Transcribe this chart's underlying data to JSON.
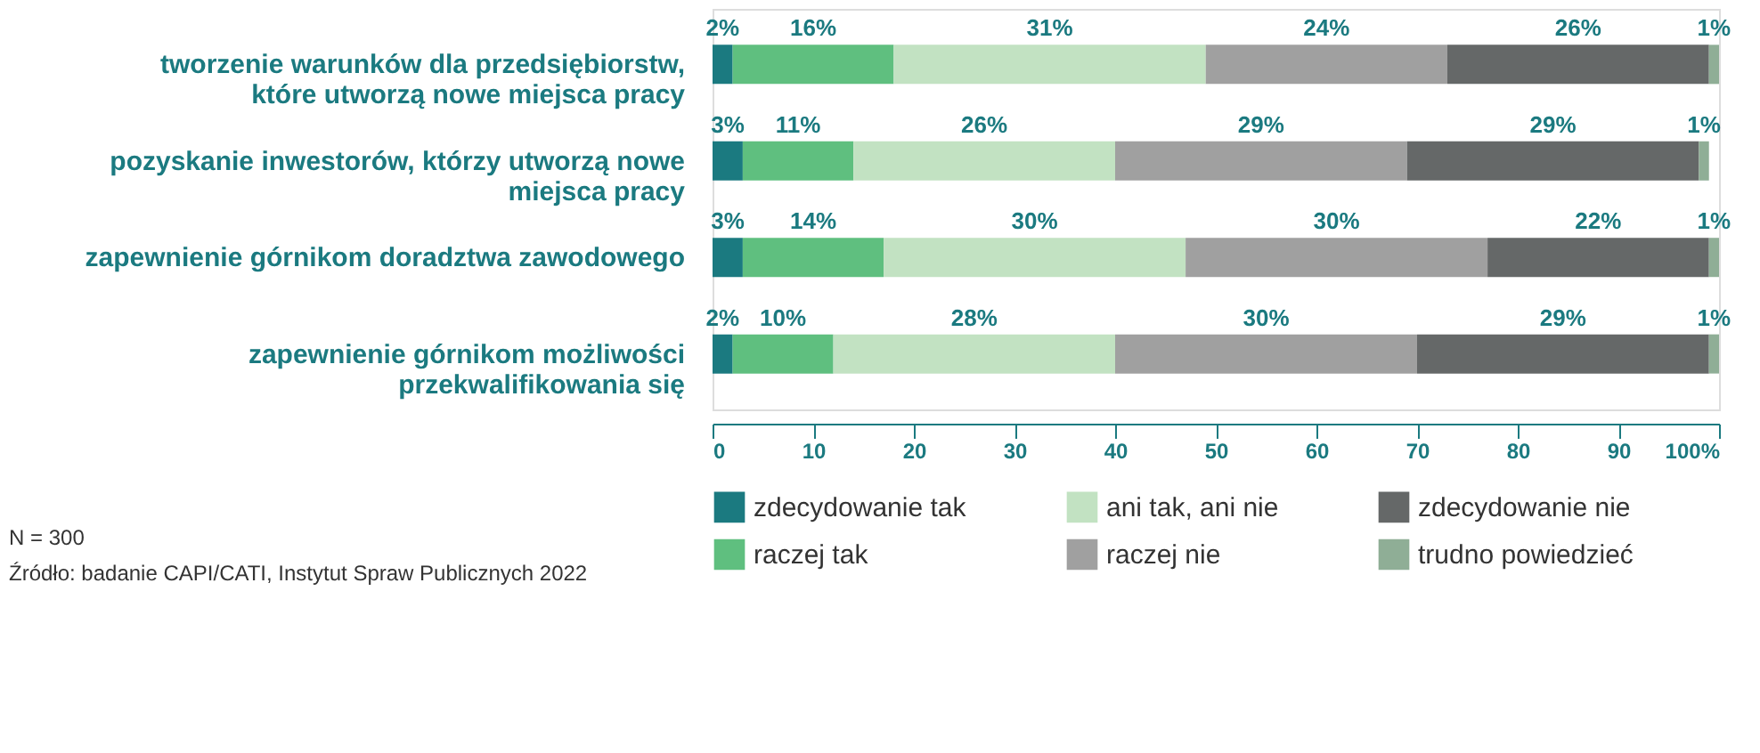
{
  "chart_data": {
    "type": "bar",
    "orientation": "horizontal",
    "stacked": true,
    "categories": [
      "tworzenie warunków dla przedsiębiorstw, które utworzą nowe miejsca pracy",
      "pozyskanie inwestorów, którzy utworzą nowe miejsca pracy",
      "zapewnienie górnikom doradztwa zawodowego",
      "zapewnienie górnikom możliwości przekwalifikowania się"
    ],
    "series": [
      {
        "name": "zdecydowanie tak",
        "color": "#1b7a80",
        "values": [
          2,
          3,
          3,
          2
        ],
        "value_labels": [
          "2%",
          "3%",
          "3%",
          "2%"
        ]
      },
      {
        "name": "raczej tak",
        "color": "#5fbf7f",
        "values": [
          16,
          11,
          14,
          10
        ],
        "value_labels": [
          "16%",
          "11%",
          "14%",
          "10%"
        ]
      },
      {
        "name": "ani tak, ani nie",
        "color": "#c2e2c2",
        "values": [
          31,
          26,
          30,
          28
        ],
        "value_labels": [
          "31%",
          "26%",
          "30%",
          "28%"
        ]
      },
      {
        "name": "raczej nie",
        "color": "#a0a0a0",
        "values": [
          24,
          29,
          30,
          30
        ],
        "value_labels": [
          "24%",
          "29%",
          "30%",
          "30%"
        ]
      },
      {
        "name": "zdecydowanie nie",
        "color": "#656868",
        "values": [
          26,
          29,
          22,
          29
        ],
        "value_labels": [
          "26%",
          "29%",
          "22%",
          "29%"
        ]
      },
      {
        "name": "trudno powiedzieć",
        "color": "#8fae96",
        "values": [
          1,
          1,
          1,
          1
        ],
        "value_labels": [
          "1%",
          "1%",
          "1%",
          "1%"
        ]
      }
    ],
    "xlim": [
      0,
      100
    ],
    "xticks": [
      0,
      10,
      20,
      30,
      40,
      50,
      60,
      70,
      80,
      90,
      {
        "value": 100,
        "label": "100%"
      }
    ],
    "grid": false,
    "legend": "bottom",
    "annotations": [
      "N = 300",
      "Źródło: badanie CAPI/CATI, Instytut Spraw Publicznych 2022"
    ]
  }
}
